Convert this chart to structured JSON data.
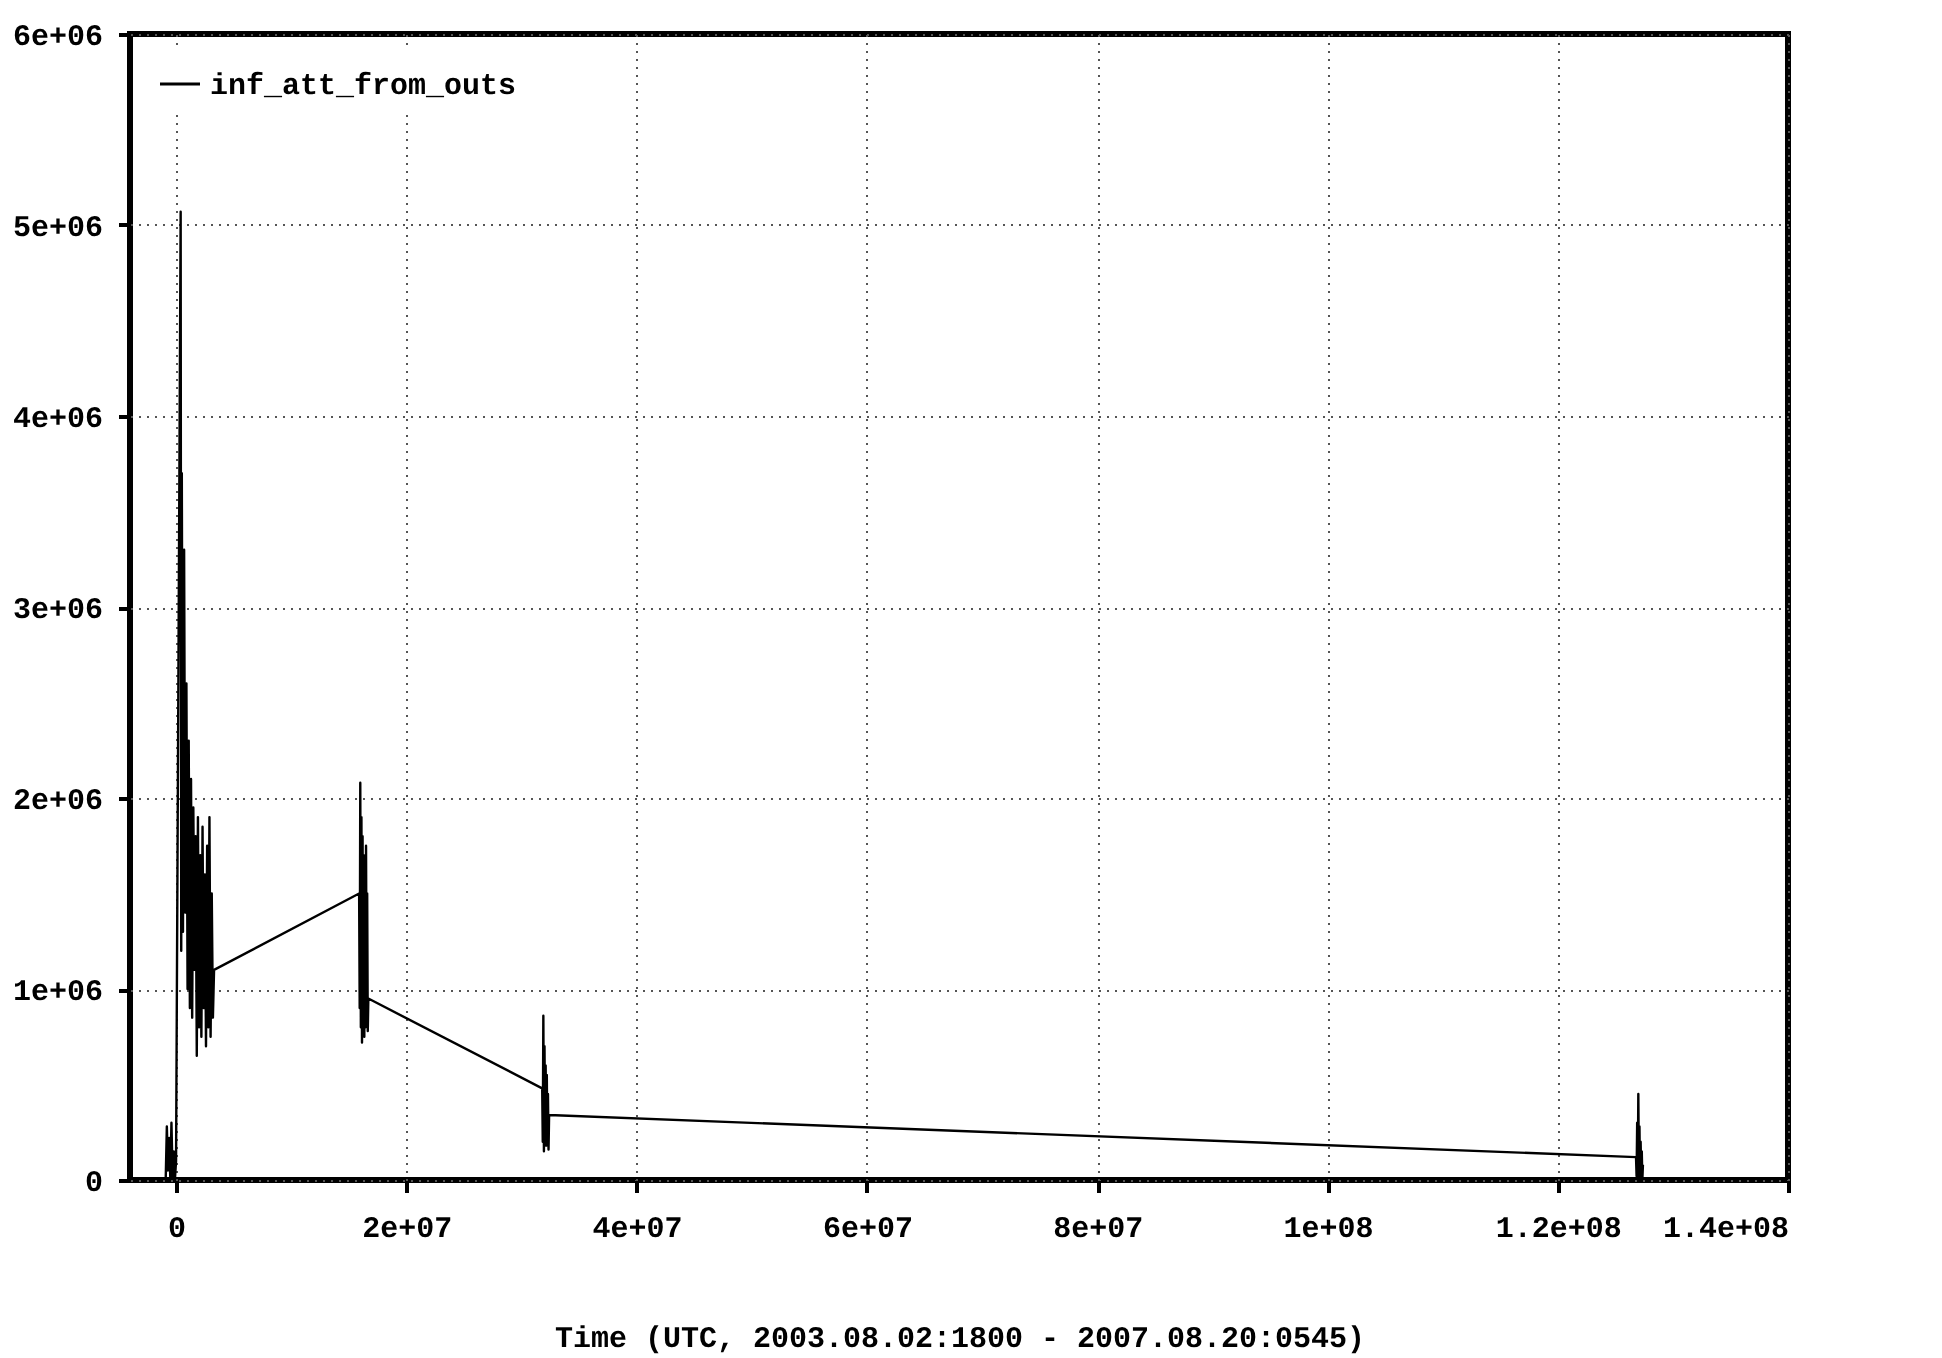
{
  "chart_data": {
    "type": "line",
    "xlabel": "Time (UTC, 2003.08.02:1800 - 2007.08.20:0545)",
    "xlim": [
      -4000000,
      140000000
    ],
    "xticks": [
      {
        "value": 0,
        "label": "0"
      },
      {
        "value": 20000000,
        "label": "2e+07"
      },
      {
        "value": 40000000,
        "label": "4e+07"
      },
      {
        "value": 60000000,
        "label": "6e+07"
      },
      {
        "value": 80000000,
        "label": "8e+07"
      },
      {
        "value": 100000000,
        "label": "1e+08"
      },
      {
        "value": 120000000,
        "label": "1.2e+08"
      },
      {
        "value": 140000000,
        "label": "1.4e+08"
      }
    ],
    "ylim": [
      0,
      6000000
    ],
    "yticks": [
      {
        "value": 0,
        "label": "0"
      },
      {
        "value": 1000000,
        "label": "1e+06"
      },
      {
        "value": 2000000,
        "label": "2e+06"
      },
      {
        "value": 3000000,
        "label": "3e+06"
      },
      {
        "value": 4000000,
        "label": "4e+06"
      },
      {
        "value": 5000000,
        "label": "5e+06"
      },
      {
        "value": 6000000,
        "label": "6e+06"
      }
    ],
    "grid": true,
    "legend": "top left",
    "marker": "none",
    "line_style": "solid",
    "series": [
      {
        "name": "inf_att_from_outs",
        "color": "#000000",
        "x": [
          -900000,
          -800000,
          -700000,
          -600000,
          -500000,
          -400000,
          -300000,
          -200000,
          -100000,
          0,
          400000,
          450000,
          500000,
          600000,
          700000,
          800000,
          900000,
          1000000,
          1100000,
          1200000,
          1300000,
          1400000,
          1500000,
          1600000,
          1700000,
          1800000,
          1900000,
          2000000,
          2100000,
          2200000,
          2300000,
          2400000,
          2500000,
          2600000,
          2700000,
          2800000,
          2900000,
          3000000,
          3100000,
          3200000,
          3300000,
          15900000,
          15950000,
          16000000,
          16050000,
          16100000,
          16150000,
          16200000,
          16250000,
          16300000,
          16350000,
          16400000,
          16450000,
          16500000,
          16550000,
          16600000,
          16650000,
          16700000,
          31800000,
          31850000,
          31900000,
          31950000,
          32000000,
          32050000,
          32100000,
          32150000,
          32200000,
          32250000,
          32300000,
          32350000,
          32400000,
          126800000,
          126850000,
          126900000,
          126950000,
          127000000,
          127050000,
          127100000,
          127150000,
          127200000,
          127250000,
          127300000,
          127350000,
          127400000
        ],
        "values": [
          0,
          280000,
          50000,
          220000,
          10000,
          300000,
          20000,
          150000,
          0,
          100000,
          5070000,
          1200000,
          3700000,
          1300000,
          3300000,
          1400000,
          2600000,
          1000000,
          2300000,
          900000,
          2100000,
          850000,
          1950000,
          1100000,
          1800000,
          650000,
          1900000,
          800000,
          1700000,
          750000,
          1850000,
          900000,
          1600000,
          700000,
          1750000,
          800000,
          1900000,
          750000,
          1500000,
          850000,
          1100000,
          1500000,
          900000,
          2080000,
          800000,
          1900000,
          720000,
          1800000,
          850000,
          1700000,
          750000,
          1600000,
          800000,
          1750000,
          900000,
          1500000,
          780000,
          950000,
          480000,
          200000,
          860000,
          150000,
          700000,
          250000,
          600000,
          180000,
          550000,
          200000,
          450000,
          160000,
          340000,
          120000,
          20000,
          300000,
          0,
          450000,
          50000,
          280000,
          0,
          200000,
          30000,
          150000,
          0,
          80000
        ]
      }
    ]
  }
}
